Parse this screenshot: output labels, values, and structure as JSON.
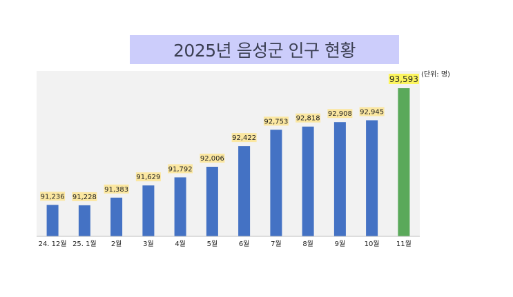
{
  "chart_data": {
    "type": "bar",
    "title": "2025년 음성군 인구 현황",
    "unit": "(단위: 명)",
    "categories": [
      "24. 12월",
      "25. 1월",
      "2월",
      "3월",
      "4월",
      "5월",
      "6월",
      "7월",
      "8월",
      "9월",
      "10월",
      "11월"
    ],
    "values": [
      91236,
      91228,
      91383,
      91629,
      91792,
      92006,
      92422,
      92753,
      92818,
      92908,
      92945,
      93593
    ],
    "labels": [
      "91,236",
      "91,228",
      "91,383",
      "91,629",
      "91,792",
      "92,006",
      "92,422",
      "92,753",
      "92,818",
      "92,908",
      "92,945",
      "93,593"
    ],
    "highlight_index": 11,
    "colors": {
      "bar": "#4472c4",
      "highlight_bar": "#5aa95a",
      "label_bg": "#fbe7a1",
      "highlight_label_bg": "#fcf55f",
      "plot_bg": "#f2f2f2",
      "title_bg": "#cccdfb"
    },
    "xlabel": "",
    "ylabel": "",
    "grid": false,
    "legend": "none"
  }
}
